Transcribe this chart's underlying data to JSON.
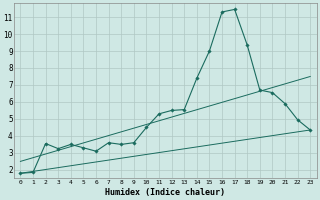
{
  "xlabel": "Humidex (Indice chaleur)",
  "background_color": "#cfe8e4",
  "grid_color": "#b0c8c4",
  "line_color": "#1a6b5e",
  "xlim": [
    -0.5,
    23.5
  ],
  "ylim": [
    1.5,
    11.8
  ],
  "xticks": [
    0,
    1,
    2,
    3,
    4,
    5,
    6,
    7,
    8,
    9,
    10,
    11,
    12,
    13,
    14,
    15,
    16,
    17,
    18,
    19,
    20,
    21,
    22,
    23
  ],
  "yticks": [
    2,
    3,
    4,
    5,
    6,
    7,
    8,
    9,
    10,
    11
  ],
  "curve1_x": [
    0,
    1,
    2,
    3,
    4,
    5,
    6,
    7,
    8,
    9,
    10,
    11,
    12,
    13,
    14,
    15,
    16,
    17,
    18,
    19,
    20,
    21,
    22,
    23
  ],
  "curve1_y": [
    1.8,
    1.85,
    3.55,
    3.25,
    3.5,
    3.3,
    3.1,
    3.6,
    3.5,
    3.6,
    4.5,
    5.3,
    5.5,
    5.55,
    7.4,
    9.0,
    11.3,
    11.45,
    9.35,
    6.7,
    6.55,
    5.9,
    4.95,
    4.35
  ],
  "line1_x": [
    0,
    23
  ],
  "line1_y": [
    2.5,
    7.5
  ],
  "line2_x": [
    0,
    23
  ],
  "line2_y": [
    1.8,
    4.35
  ]
}
